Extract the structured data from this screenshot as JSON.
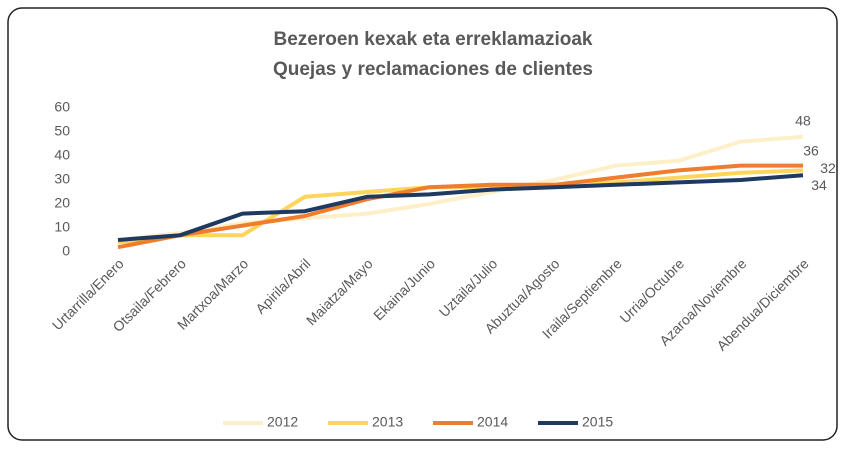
{
  "chart_data": {
    "type": "line",
    "title": [
      "Bezeroen kexak eta erreklamazioak",
      "Quejas y reclamaciones de clientes"
    ],
    "categories": [
      "Urtarrilla/Enero",
      "Otsaila/Febrero",
      "Martxoa/Marzo",
      "Apirila/Abril",
      "Maiatza/Mayo",
      "Ekaina/Junio",
      "Uztaila/Julio",
      "Abuztua/Agosto",
      "Iraila/Septiembre",
      "Urria/Octubre",
      "Azaroa/Noviembre",
      "Abendua/Diciembre"
    ],
    "series": [
      {
        "name": "2012",
        "color": "#fdf0c8",
        "values": [
          5,
          8,
          12,
          14,
          16,
          20,
          25,
          30,
          36,
          38,
          46,
          48
        ]
      },
      {
        "name": "2013",
        "color": "#fdd55a",
        "values": [
          4,
          7,
          7,
          23,
          25,
          27,
          27,
          28,
          29,
          31,
          33,
          34
        ]
      },
      {
        "name": "2014",
        "color": "#ef7d2d",
        "values": [
          2,
          7,
          11,
          15,
          22,
          27,
          28,
          28,
          31,
          34,
          36,
          36
        ]
      },
      {
        "name": "2015",
        "color": "#1f3a60",
        "values": [
          5,
          7,
          16,
          17,
          23,
          24,
          26,
          27,
          28,
          29,
          30,
          32
        ]
      }
    ],
    "ylim": [
      0,
      60
    ],
    "yticks": [
      0,
      10,
      20,
      30,
      40,
      50,
      60
    ],
    "label_last": true,
    "legend": "bottom",
    "grid": false
  }
}
